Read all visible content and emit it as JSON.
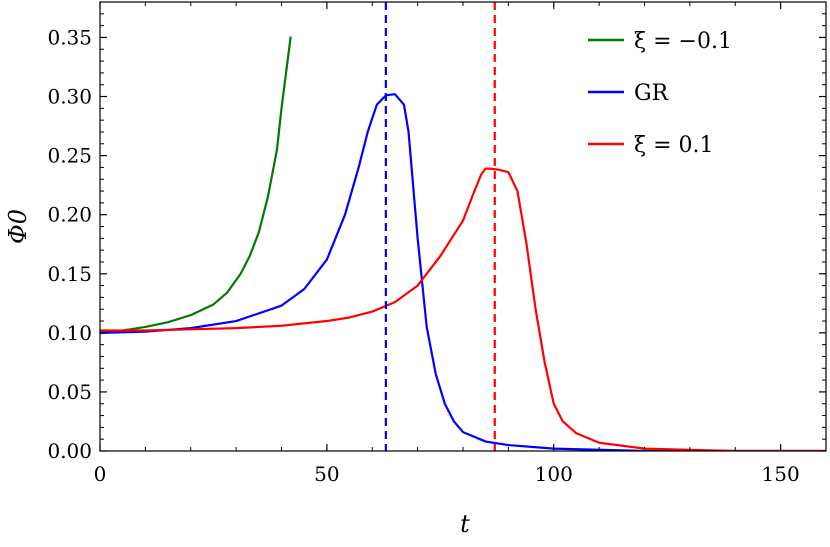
{
  "chart_data": {
    "type": "line",
    "xlabel": "t",
    "ylabel": "Φ0",
    "xlim": [
      0,
      160
    ],
    "ylim": [
      0,
      0.38
    ],
    "xticks": [
      0,
      50,
      100,
      150
    ],
    "xtick_labels": [
      "0",
      "50",
      "100",
      "150"
    ],
    "yticks": [
      0.0,
      0.05,
      0.1,
      0.15,
      0.2,
      0.25,
      0.3,
      0.35
    ],
    "ytick_labels": [
      "0.00",
      "0.05",
      "0.10",
      "0.15",
      "0.20",
      "0.25",
      "0.30",
      "0.35"
    ],
    "grid": false,
    "legend_position": "top-right",
    "series": [
      {
        "name": "ξ = −0.1",
        "color": "#007a00",
        "style": "solid",
        "x": [
          0,
          5,
          10,
          15,
          20,
          25,
          28,
          31,
          33,
          35,
          37,
          39,
          40,
          41,
          42
        ],
        "y": [
          0.101,
          0.102,
          0.105,
          0.109,
          0.115,
          0.124,
          0.134,
          0.15,
          0.165,
          0.185,
          0.215,
          0.255,
          0.29,
          0.32,
          0.35
        ]
      },
      {
        "name": "GR",
        "color": "#0000ff",
        "style": "solid",
        "x": [
          0,
          10,
          20,
          30,
          40,
          45,
          50,
          54,
          57,
          59,
          61,
          63,
          65,
          67,
          68,
          70,
          72,
          74,
          76,
          78,
          80,
          85,
          90,
          100,
          120,
          160
        ],
        "y": [
          0.1,
          0.101,
          0.104,
          0.11,
          0.123,
          0.137,
          0.162,
          0.2,
          0.24,
          0.27,
          0.293,
          0.301,
          0.302,
          0.293,
          0.27,
          0.18,
          0.105,
          0.065,
          0.04,
          0.025,
          0.016,
          0.008,
          0.005,
          0.002,
          0.0,
          0.0
        ]
      },
      {
        "name": "ξ = 0.1",
        "color": "#ff0000",
        "style": "solid",
        "x": [
          0,
          10,
          20,
          30,
          40,
          50,
          55,
          60,
          65,
          70,
          75,
          80,
          82,
          84,
          85,
          86,
          88,
          90,
          92,
          94,
          96,
          98,
          100,
          102,
          105,
          110,
          120,
          130,
          140,
          160
        ],
        "y": [
          0.102,
          0.102,
          0.103,
          0.104,
          0.106,
          0.11,
          0.113,
          0.118,
          0.126,
          0.14,
          0.165,
          0.195,
          0.215,
          0.234,
          0.239,
          0.239,
          0.238,
          0.236,
          0.22,
          0.175,
          0.12,
          0.075,
          0.04,
          0.025,
          0.015,
          0.007,
          0.002,
          0.001,
          0.0,
          0.0
        ]
      }
    ],
    "vlines": [
      {
        "x": 63,
        "color": "#0000ff",
        "style": "dashed"
      },
      {
        "x": 87,
        "color": "#ff0000",
        "style": "dashed"
      }
    ]
  }
}
